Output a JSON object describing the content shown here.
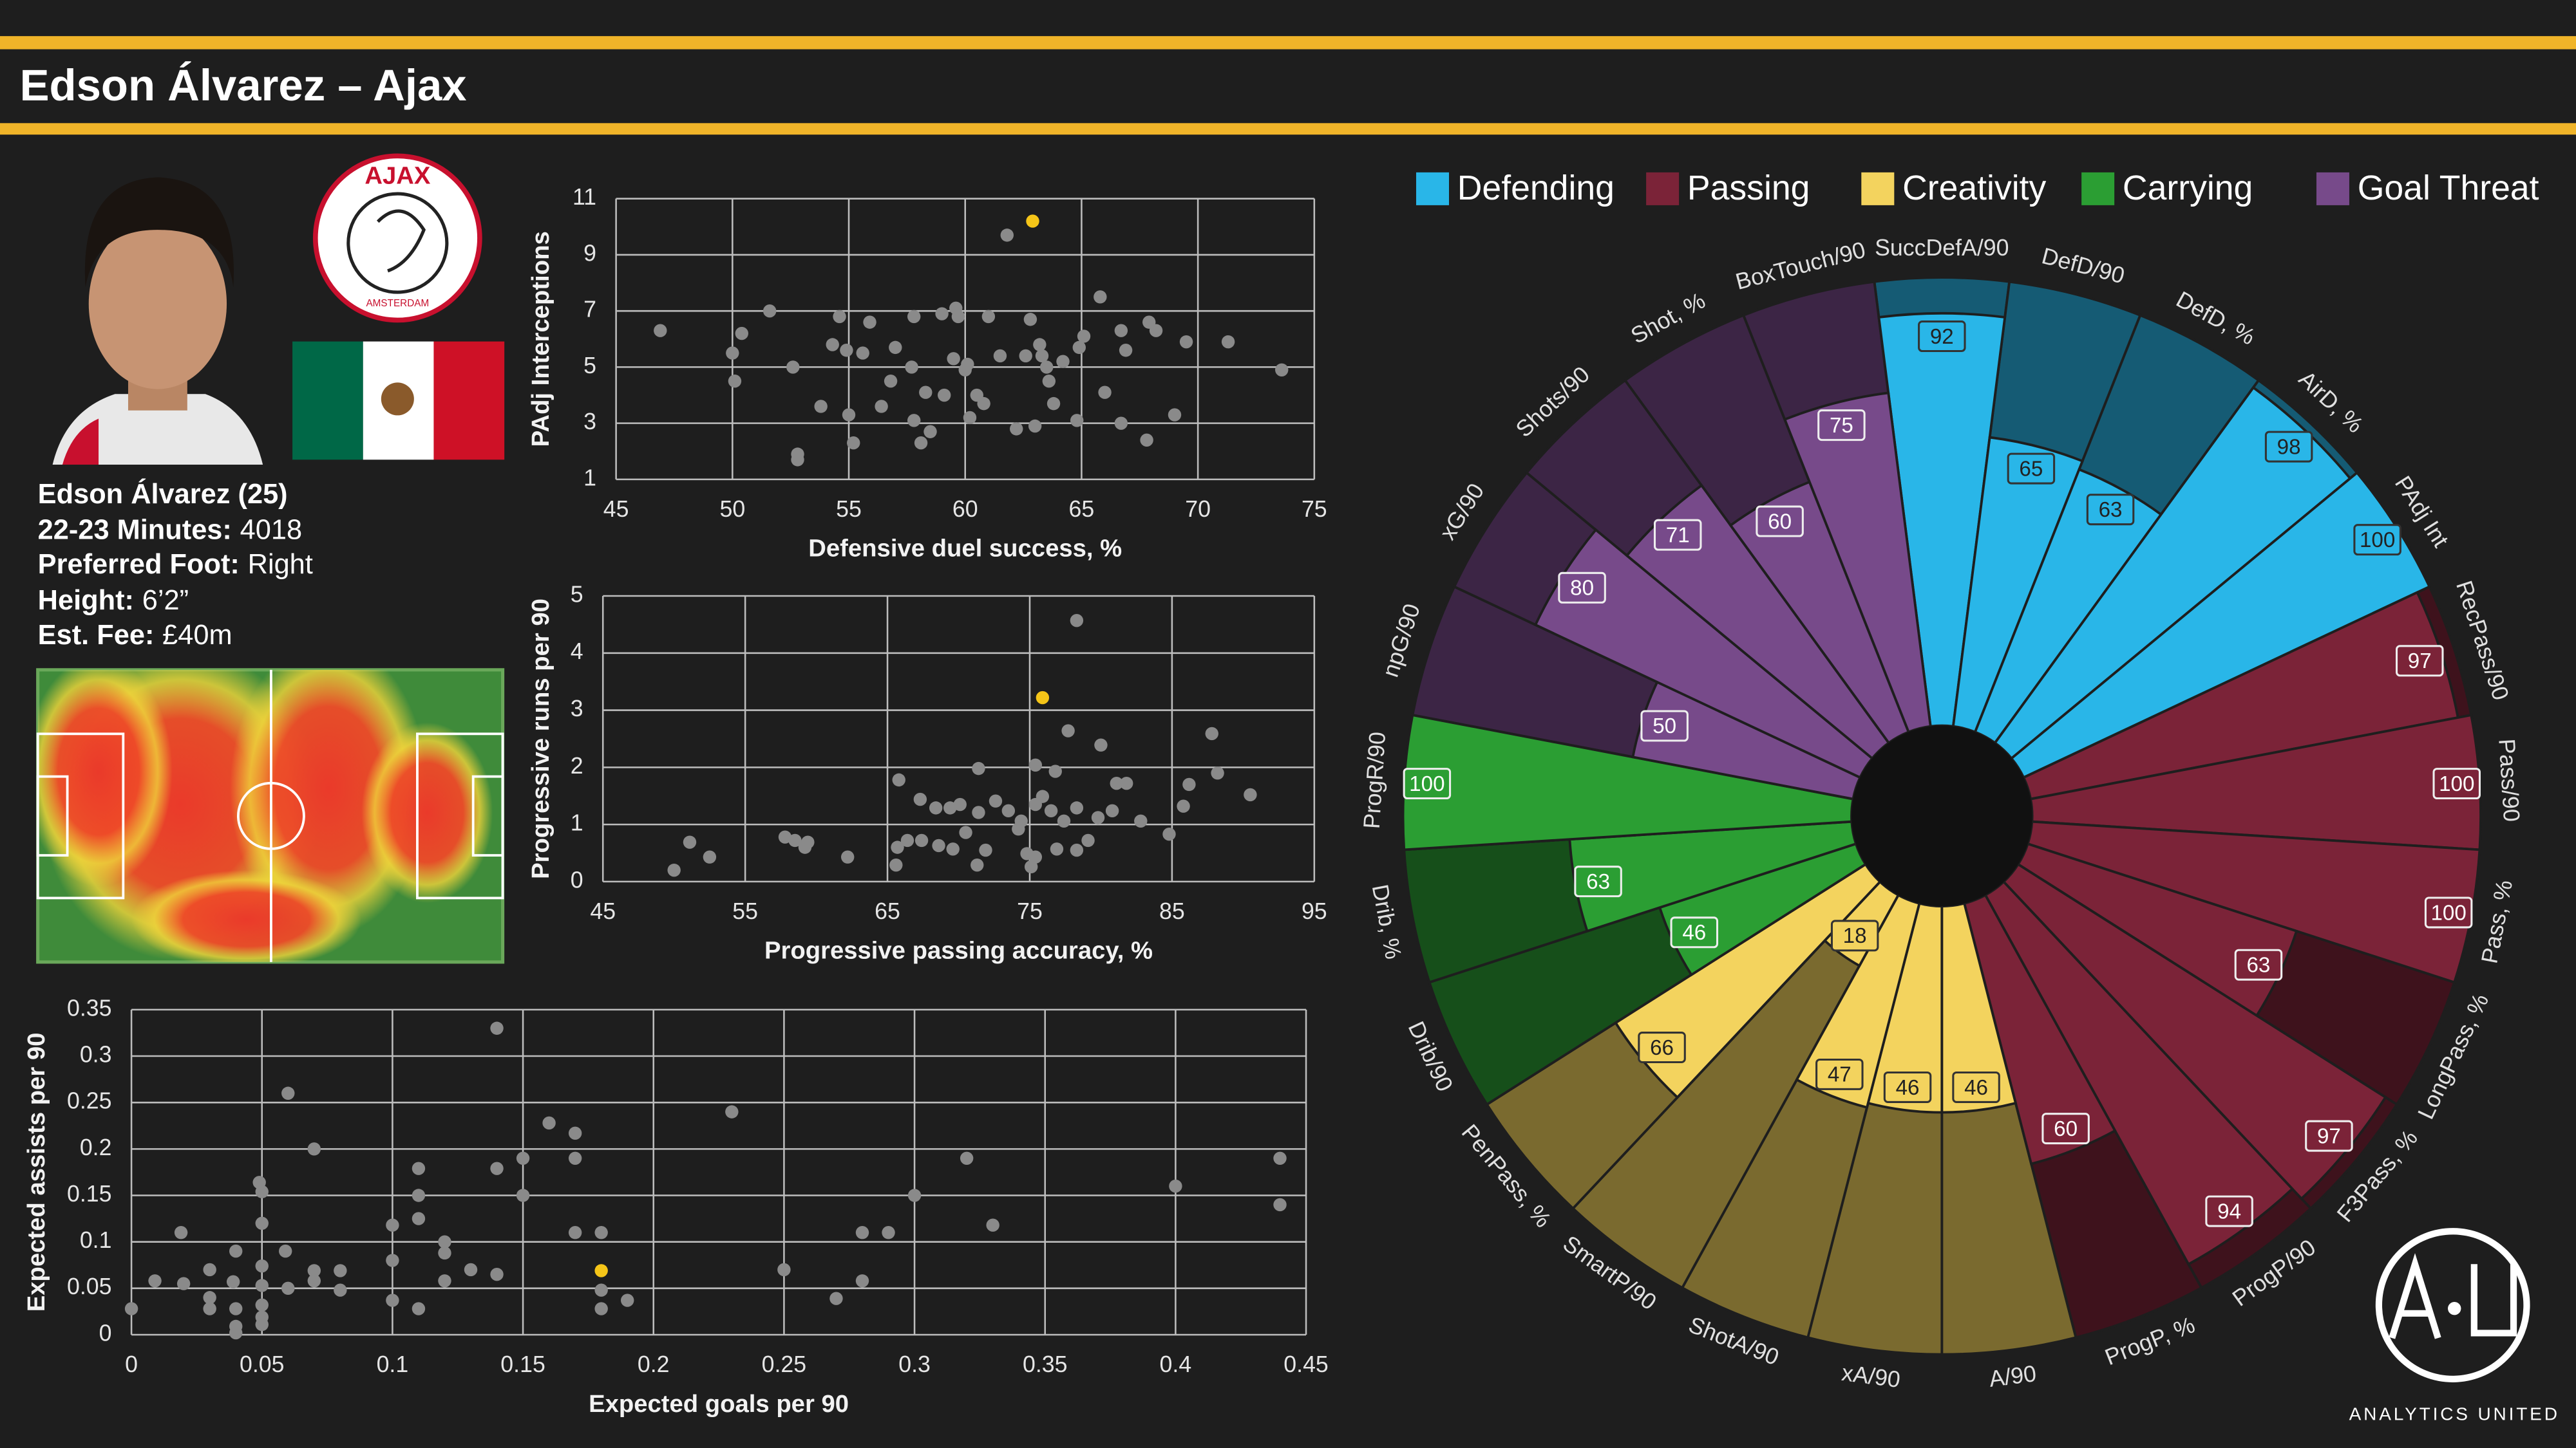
{
  "header": {
    "title": "Edson Álvarez – Ajax"
  },
  "profile": {
    "name_line": "Edson Álvarez (25)",
    "rows": [
      {
        "label": "22-23 Minutes:",
        "value": 4018
      },
      {
        "label": "Preferred Foot:",
        "value": "Right"
      },
      {
        "label": "Height:",
        "value": "6’2”"
      },
      {
        "label": "Est. Fee:",
        "value": "£40m"
      }
    ]
  },
  "logos": {
    "club_top": "AJAX",
    "club_bottom": "AMSTERDAM",
    "brand": "ANALYTICS UNITED"
  },
  "chart_data": [
    {
      "type": "scatter",
      "xlabel": "Defensive duel success, %",
      "ylabel": "PAdj Interceptions",
      "xlim": [
        45,
        75
      ],
      "ylim": [
        1,
        11
      ],
      "xticks": [
        45,
        50,
        55,
        60,
        65,
        70,
        75
      ],
      "yticks": [
        1,
        3,
        5,
        7,
        9,
        11
      ],
      "grid": true,
      "series": [
        {
          "color": "#8a8a8a",
          "x": [
            46.9,
            50.0,
            50.1,
            50.4,
            51.6,
            52.6,
            52.8,
            52.8,
            53.8,
            54.3,
            54.6,
            54.9,
            55.0,
            55.2,
            55.6,
            55.9,
            56.4,
            56.8,
            57.0,
            57.7,
            57.8,
            57.8,
            58.1,
            58.3,
            58.5,
            59.0,
            59.1,
            59.5,
            59.6,
            59.7,
            60.0,
            60.1,
            60.2,
            60.5,
            60.8,
            61.0,
            61.5,
            61.8,
            62.2,
            62.6,
            62.8,
            63.0,
            63.2,
            63.3,
            63.5,
            63.6,
            63.8,
            64.2,
            64.8,
            64.9,
            65.1,
            65.8,
            66.0,
            66.7,
            66.7,
            66.9,
            67.8,
            67.9,
            68.2,
            69.0,
            69.5,
            71.3,
            73.6
          ],
          "values": [
            6.3,
            5.5,
            4.5,
            6.2,
            7.0,
            5.0,
            1.9,
            1.7,
            3.6,
            5.8,
            6.8,
            5.6,
            3.3,
            2.3,
            5.5,
            6.6,
            3.6,
            4.5,
            5.7,
            5.0,
            6.8,
            3.1,
            2.3,
            4.1,
            2.7,
            6.9,
            4.0,
            5.3,
            7.1,
            6.8,
            4.9,
            5.1,
            3.2,
            4.0,
            3.7,
            6.8,
            5.4,
            9.7,
            2.8,
            5.4,
            6.7,
            2.9,
            5.8,
            5.4,
            5.0,
            4.5,
            3.7,
            5.2,
            3.1,
            5.7,
            6.1,
            7.5,
            4.1,
            6.3,
            3.0,
            5.6,
            2.4,
            6.6,
            6.3,
            3.3,
            5.9,
            5.9,
            4.9
          ]
        },
        {
          "color": "#f5c518",
          "x": [
            62.9
          ],
          "values": [
            10.2
          ]
        }
      ]
    },
    {
      "type": "scatter",
      "xlabel": "Progressive passing accuracy, %",
      "ylabel": "Progressive runs per 90",
      "xlim": [
        45,
        95
      ],
      "ylim": [
        0,
        5
      ],
      "xticks": [
        45,
        55,
        65,
        75,
        85,
        95
      ],
      "yticks": [
        0,
        1,
        2,
        3,
        4,
        5
      ],
      "grid": true,
      "series": [
        {
          "color": "#8a8a8a",
          "x": [
            78.3,
            77.7,
            87.8,
            71.4,
            75.4,
            76.8,
            80.0,
            81.1,
            81.8,
            86.2,
            88.2,
            90.5,
            65.8,
            67.3,
            68.4,
            69.4,
            70.1,
            71.4,
            72.6,
            73.5,
            74.4,
            75.4,
            75.9,
            76.5,
            77.4,
            78.3,
            79.8,
            80.8,
            82.8,
            84.8,
            85.8,
            70.5,
            66.4,
            65.7,
            67.4,
            68.6,
            69.6,
            71.9,
            74.8,
            75.4,
            76.9,
            78.3,
            79.1,
            75.1,
            65.6,
            62.2,
            57.8,
            58.5,
            59.2,
            59.4,
            51.1,
            52.5,
            50.0,
            71.3,
            74.2
          ],
          "values": [
            4.57,
            2.64,
            2.59,
            1.98,
            2.04,
            1.93,
            2.39,
            1.72,
            1.72,
            1.7,
            1.9,
            1.52,
            1.78,
            1.44,
            1.29,
            1.29,
            1.35,
            1.21,
            1.41,
            1.24,
            1.06,
            1.35,
            1.49,
            1.24,
            1.06,
            1.29,
            1.12,
            1.24,
            1.06,
            0.83,
            1.32,
            0.86,
            0.72,
            0.6,
            0.72,
            0.63,
            0.57,
            0.55,
            0.49,
            0.43,
            0.57,
            0.55,
            0.72,
            0.26,
            0.29,
            0.43,
            0.78,
            0.72,
            0.6,
            0.69,
            0.69,
            0.43,
            0.2,
            0.29,
            0.92
          ]
        },
        {
          "color": "#f5c518",
          "x": [
            75.9
          ],
          "values": [
            3.22
          ]
        }
      ]
    },
    {
      "type": "scatter",
      "xlabel": "Expected goals per 90",
      "ylabel": "Expected assists per 90",
      "xlim": [
        0,
        0.45
      ],
      "ylim": [
        0,
        0.35
      ],
      "xticks": [
        0,
        0.05,
        0.1,
        0.15,
        0.2,
        0.25,
        0.3,
        0.35,
        0.4,
        0.45
      ],
      "yticks": [
        0,
        0.05,
        0.1,
        0.15,
        0.2,
        0.25,
        0.3,
        0.35
      ],
      "grid": true,
      "series": [
        {
          "color": "#8a8a8a",
          "x": [
            0,
            0.009,
            0.019,
            0.02,
            0.03,
            0.03,
            0.03,
            0.039,
            0.04,
            0.04,
            0.04,
            0.04,
            0.049,
            0.05,
            0.05,
            0.05,
            0.05,
            0.05,
            0.05,
            0.05,
            0.059,
            0.06,
            0.06,
            0.07,
            0.07,
            0.07,
            0.08,
            0.08,
            0.1,
            0.1,
            0.1,
            0.11,
            0.11,
            0.11,
            0.11,
            0.12,
            0.12,
            0.12,
            0.13,
            0.14,
            0.14,
            0.14,
            0.15,
            0.15,
            0.16,
            0.17,
            0.17,
            0.17,
            0.18,
            0.18,
            0.18,
            0.19,
            0.23,
            0.25,
            0.27,
            0.28,
            0.28,
            0.29,
            0.3,
            0.32,
            0.33,
            0.4,
            0.44,
            0.44
          ],
          "values": [
            0.028,
            0.058,
            0.11,
            0.055,
            0.07,
            0.04,
            0.028,
            0.057,
            0.09,
            0.028,
            0.009,
            0.002,
            0.164,
            0.154,
            0.12,
            0.074,
            0.053,
            0.032,
            0.019,
            0.011,
            0.09,
            0.26,
            0.05,
            0.2,
            0.069,
            0.058,
            0.069,
            0.048,
            0.118,
            0.08,
            0.037,
            0.179,
            0.15,
            0.125,
            0.028,
            0.1,
            0.088,
            0.058,
            0.07,
            0.179,
            0.33,
            0.065,
            0.19,
            0.15,
            0.228,
            0.217,
            0.19,
            0.11,
            0.11,
            0.048,
            0.028,
            0.037,
            0.24,
            0.07,
            0.039,
            0.058,
            0.11,
            0.11,
            0.15,
            0.19,
            0.118,
            0.16,
            0.19,
            0.14
          ]
        },
        {
          "color": "#f5c518",
          "x": [
            0.18
          ],
          "values": [
            0.069
          ]
        }
      ]
    },
    {
      "type": "pizza",
      "ylim": [
        0,
        100
      ],
      "series": [
        {
          "name": "Defending",
          "color": "#29b6e8",
          "categories": [
            "SuccDefA/90",
            "DefD/90",
            "DefD, %",
            "AirD, %",
            "PAdj Int"
          ],
          "values": [
            92,
            65,
            63,
            98,
            100
          ]
        },
        {
          "name": "Passing",
          "color": "#7b2338",
          "categories": [
            "RecPass/90",
            "Pass/90",
            "Pass, %",
            "LongPass, %",
            "F3Pass, %",
            "ProgP/90",
            "ProgP, %"
          ],
          "values": [
            97,
            100,
            100,
            63,
            97,
            94,
            60
          ]
        },
        {
          "name": "Creativity",
          "color": "#f3d35e",
          "categories": [
            "A/90",
            "xA/90",
            "ShotA/90",
            "SmartP/90",
            "PenPass, %"
          ],
          "values": [
            46,
            46,
            47,
            18,
            66
          ]
        },
        {
          "name": "Carrying",
          "color": "#2b9e33",
          "categories": [
            "Drib/90",
            "Drib, %",
            "ProgR/90"
          ],
          "values": [
            46,
            63,
            100
          ]
        },
        {
          "name": "Goal Threat",
          "color": "#774a8a",
          "categories": [
            "npG/90",
            "xG/90",
            "Shots/90",
            "Shot, %",
            "BoxTouch/90"
          ],
          "values": [
            50,
            80,
            71,
            60,
            75
          ]
        }
      ]
    }
  ]
}
